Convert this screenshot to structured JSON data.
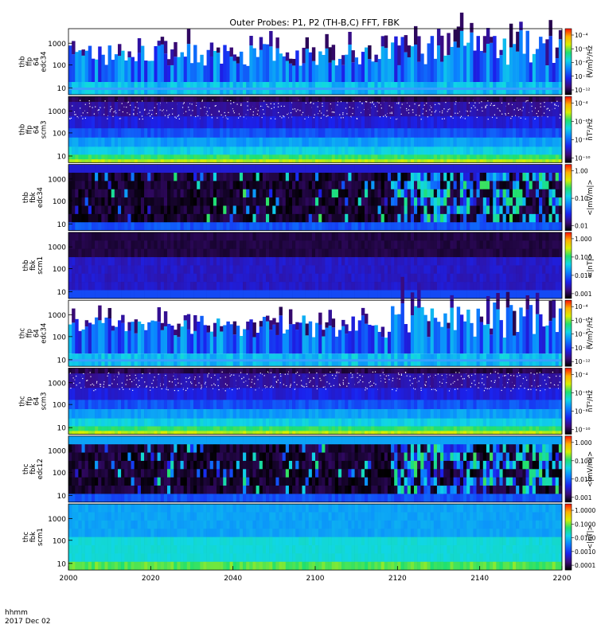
{
  "chart_data": {
    "type": "heatmap",
    "title": "Outer Probes: P1, P2 (TH-B,C) FFT, FBK",
    "x": {
      "ticks": [
        "2000",
        "2020",
        "2040",
        "2100",
        "2120",
        "2140",
        "2200"
      ],
      "label_line1": "hhmm",
      "label_line2": "2017 Dec 02"
    },
    "panels": [
      {
        "labels": [
          "thb",
          "ffp",
          "64",
          "edc34"
        ],
        "y_ticks": [
          "1000",
          "100",
          "10"
        ],
        "cbar_ticks": [
          "10⁻⁴",
          "10⁻⁶",
          "10⁻⁸",
          "10⁻¹⁰",
          "10⁻¹²"
        ],
        "cbar_label": "(V/m)²/Hz",
        "style": "edc"
      },
      {
        "labels": [
          "thb",
          "ffp",
          "64",
          "scm3"
        ],
        "y_ticks": [
          "1000",
          "100",
          "10"
        ],
        "cbar_ticks": [
          "10⁻⁴",
          "10⁻⁶",
          "10⁻⁸",
          "10⁻¹⁰"
        ],
        "cbar_label": "nT²/Hz",
        "style": "scm"
      },
      {
        "labels": [
          "thb",
          "fbk",
          "edc34"
        ],
        "y_ticks": [
          "1000",
          "100",
          "10"
        ],
        "cbar_ticks": [
          "1.00",
          "0.10",
          "0.01"
        ],
        "cbar_label": "<|mV/m|>",
        "style": "fbke"
      },
      {
        "labels": [
          "thb",
          "fbk",
          "scm1"
        ],
        "y_ticks": [
          "1000",
          "100",
          "10"
        ],
        "cbar_ticks": [
          "1.000",
          "0.100",
          "0.010",
          "0.001"
        ],
        "cbar_label": "<|nT|>",
        "style": "fbks"
      },
      {
        "labels": [
          "thc",
          "ffp",
          "64",
          "edc34"
        ],
        "y_ticks": [
          "1000",
          "100",
          "10"
        ],
        "cbar_ticks": [
          "10⁻⁴",
          "10⁻⁶",
          "10⁻⁸",
          "10⁻¹⁰",
          "10⁻¹²"
        ],
        "cbar_label": "(V/m)²/Hz",
        "style": "edc"
      },
      {
        "labels": [
          "thc",
          "ffp",
          "64",
          "scm3"
        ],
        "y_ticks": [
          "1000",
          "100",
          "10"
        ],
        "cbar_ticks": [
          "10⁻⁴",
          "10⁻⁶",
          "10⁻⁸",
          "10⁻¹⁰"
        ],
        "cbar_label": "nT²/Hz",
        "style": "scm"
      },
      {
        "labels": [
          "thc",
          "fbk",
          "edc12"
        ],
        "y_ticks": [
          "1000",
          "100",
          "10"
        ],
        "cbar_ticks": [
          "1.000",
          "0.100",
          "0.010",
          "0.001"
        ],
        "cbar_label": "<|mV/m|>",
        "style": "fbke2"
      },
      {
        "labels": [
          "thc",
          "fbk",
          "scm1"
        ],
        "y_ticks": [
          "1000",
          "100",
          "10"
        ],
        "cbar_ticks": [
          "1.0000",
          "0.1000",
          "0.0100",
          "0.0010",
          "0.0001"
        ],
        "cbar_label": "<|nT|>",
        "style": "fbks2"
      }
    ]
  }
}
